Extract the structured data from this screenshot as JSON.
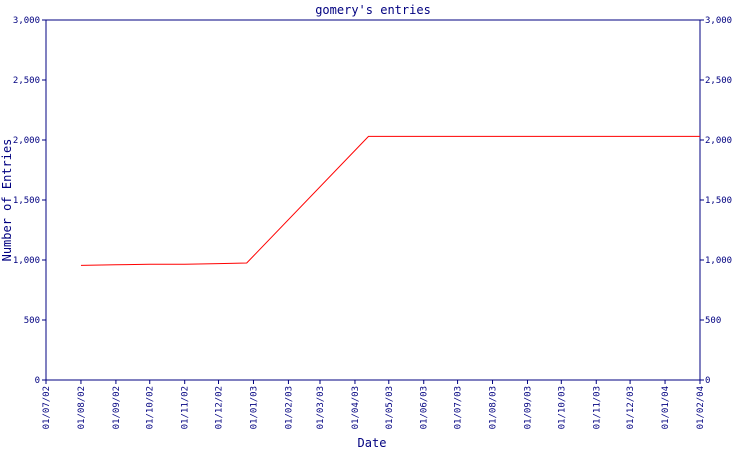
{
  "chart_data": {
    "type": "line",
    "title": "gomery's entries",
    "xlabel": "Date",
    "ylabel": "Number of Entries",
    "x": [
      "01/08/02",
      "01/09/02",
      "01/10/02",
      "01/11/02",
      "01/12/02",
      "26/12/02",
      "13/04/03",
      "01/02/04"
    ],
    "series": [
      {
        "name": "entries",
        "color": "#ff0000",
        "values": [
          955,
          960,
          965,
          965,
          970,
          975,
          2030,
          2030
        ]
      }
    ],
    "xlim": [
      "01/07/02",
      "01/02/04"
    ],
    "xticks": [
      "01/07/02",
      "01/08/02",
      "01/09/02",
      "01/10/02",
      "01/11/02",
      "01/12/02",
      "01/01/03",
      "01/02/03",
      "01/03/03",
      "01/04/03",
      "01/05/03",
      "01/06/03",
      "01/07/03",
      "01/08/03",
      "01/09/03",
      "01/10/03",
      "01/11/03",
      "01/12/03",
      "01/01/04",
      "01/02/04"
    ],
    "ylim": [
      0,
      3000
    ],
    "yticks": [
      0,
      500,
      {
        "value": 1000,
        "label": "1,000"
      },
      {
        "value": 1500,
        "label": "1,500"
      },
      {
        "value": 2000,
        "label": "2,000"
      },
      {
        "value": 2500,
        "label": "2,500"
      },
      {
        "value": 3000,
        "label": "3,000"
      }
    ],
    "y2lim": [
      0,
      3000
    ],
    "y2ticks": [
      0,
      500,
      {
        "value": 1000,
        "label": "1,000"
      },
      {
        "value": 1500,
        "label": "1,500"
      },
      {
        "value": 2000,
        "label": "2,000"
      },
      {
        "value": 2500,
        "label": "2,500"
      },
      {
        "value": 3000,
        "label": "3,000"
      }
    ],
    "axis_color": "#000080"
  }
}
